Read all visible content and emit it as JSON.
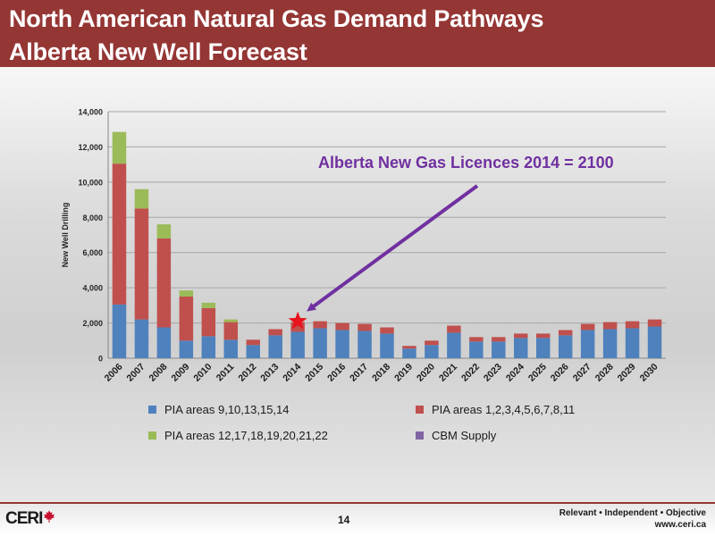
{
  "header": {
    "title_line_1": "North American Natural Gas Demand Pathways",
    "title_line_2": "Alberta New Well Forecast",
    "bar_color": "#943634"
  },
  "annotation": {
    "text": "Alberta New Gas Licences 2014 = 2100",
    "color": "#7030a0",
    "marker_year": "2014",
    "marker_value": 2100,
    "marker_color": "#e8141c"
  },
  "chart_data": {
    "type": "bar",
    "stacked": true,
    "categories": [
      "2006",
      "2007",
      "2008",
      "2009",
      "2010",
      "2011",
      "2012",
      "2013",
      "2014",
      "2015",
      "2016",
      "2017",
      "2018",
      "2019",
      "2020",
      "2021",
      "2022",
      "2023",
      "2024",
      "2025",
      "2026",
      "2027",
      "2028",
      "2029",
      "2030"
    ],
    "series": [
      {
        "name": "PIA areas 9,10,13,15,14",
        "color": "#4f81bd",
        "values": [
          3050,
          2200,
          1750,
          1000,
          1250,
          1050,
          750,
          1300,
          1500,
          1700,
          1600,
          1550,
          1400,
          550,
          750,
          1450,
          950,
          950,
          1150,
          1150,
          1300,
          1600,
          1650,
          1700,
          1800
        ]
      },
      {
        "name": "PIA areas 1,2,3,4,5,6,7,8,11",
        "color": "#c0504d",
        "values": [
          8000,
          6300,
          5050,
          2500,
          1600,
          1000,
          300,
          350,
          550,
          400,
          400,
          400,
          350,
          150,
          250,
          400,
          250,
          250,
          250,
          250,
          300,
          350,
          400,
          400,
          400
        ]
      },
      {
        "name": "PIA areas 12,17,18,19,20,21,22",
        "color": "#9bbb59",
        "values": [
          1800,
          1100,
          800,
          350,
          300,
          150,
          0,
          0,
          0,
          0,
          0,
          0,
          0,
          0,
          0,
          0,
          0,
          0,
          0,
          0,
          0,
          0,
          0,
          0,
          0
        ]
      },
      {
        "name": "CBM Supply",
        "color": "#8064a2",
        "values": [
          0,
          0,
          0,
          0,
          0,
          0,
          0,
          0,
          0,
          0,
          0,
          0,
          0,
          0,
          0,
          0,
          0,
          0,
          0,
          0,
          0,
          0,
          0,
          0,
          0
        ]
      }
    ],
    "ylabel": "New Well Drilling",
    "xlabel": "",
    "ylim": [
      0,
      14000
    ],
    "yticks": [
      0,
      2000,
      4000,
      6000,
      8000,
      10000,
      12000,
      14000
    ],
    "ytick_labels": [
      "0",
      "2,000",
      "4,000",
      "6,000",
      "8,000",
      "10,000",
      "12,000",
      "14,000"
    ],
    "grid": true,
    "legend_position": "bottom"
  },
  "footer": {
    "logo_text": "CERI",
    "page_number": "14",
    "tagline": "Relevant  •  Independent  •  Objective",
    "website": "www.ceri.ca"
  }
}
